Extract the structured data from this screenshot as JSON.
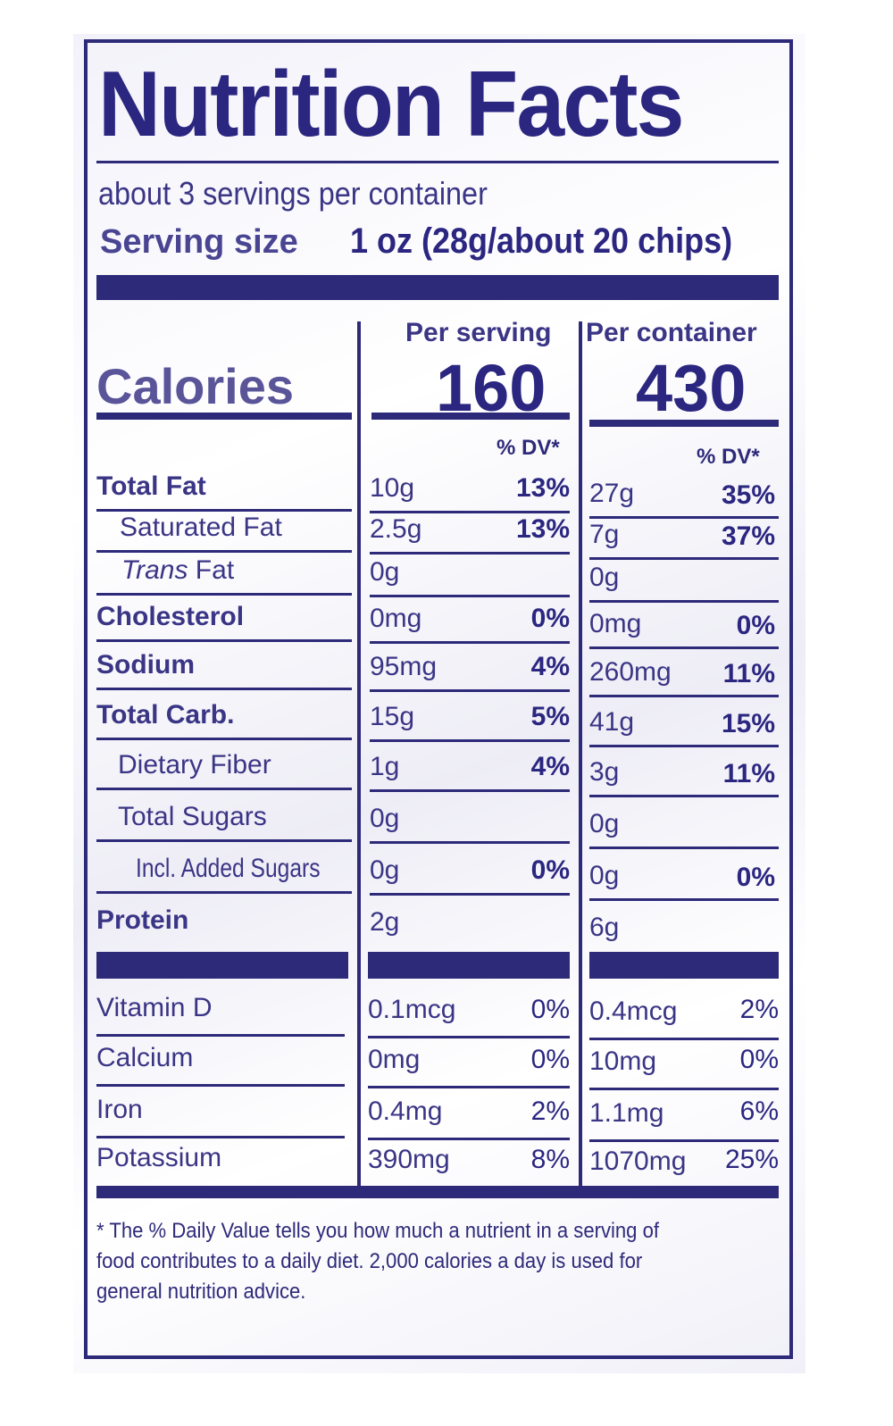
{
  "title": "Nutrition Facts",
  "servings_per_container": "about 3 servings per container",
  "serving_size_label": "Serving size",
  "serving_size_value": "1 oz (28g/about 20 chips)",
  "columns": {
    "per_serving": "Per serving",
    "per_container": "Per container"
  },
  "calories": {
    "label": "Calories",
    "per_serving": "160",
    "per_container": "430"
  },
  "dv_header": "% DV*",
  "nutrients": [
    {
      "name": "Total Fat",
      "s_amt": "10g",
      "s_dv": "13%",
      "c_amt": "27g",
      "c_dv": "35%"
    },
    {
      "name": "Saturated Fat",
      "s_amt": "2.5g",
      "s_dv": "13%",
      "c_amt": "7g",
      "c_dv": "37%"
    },
    {
      "name_em": "Trans",
      "name_rest": " Fat",
      "s_amt": "0g",
      "c_amt": "0g"
    },
    {
      "name": "Cholesterol",
      "s_amt": "0mg",
      "s_dv": "0%",
      "c_amt": "0mg",
      "c_dv": "0%"
    },
    {
      "name": "Sodium",
      "s_amt": "95mg",
      "s_dv": "4%",
      "c_amt": "260mg",
      "c_dv": "11%"
    },
    {
      "name": "Total Carb.",
      "s_amt": "15g",
      "s_dv": "5%",
      "c_amt": "41g",
      "c_dv": "15%"
    },
    {
      "name": "Dietary Fiber",
      "s_amt": "1g",
      "s_dv": "4%",
      "c_amt": "3g",
      "c_dv": "11%"
    },
    {
      "name": "Total Sugars",
      "s_amt": "0g",
      "c_amt": "0g"
    },
    {
      "name": "Incl. Added Sugars",
      "s_amt": "0g",
      "s_dv": "0%",
      "c_amt": "0g",
      "c_dv": "0%"
    },
    {
      "name": "Protein",
      "s_amt": "2g",
      "c_amt": "6g"
    }
  ],
  "vitamins": [
    {
      "name": "Vitamin D",
      "s_amt": "0.1mcg",
      "s_dv": "0%",
      "c_amt": "0.4mcg",
      "c_dv": "2%"
    },
    {
      "name": "Calcium",
      "s_amt": "0mg",
      "s_dv": "0%",
      "c_amt": "10mg",
      "c_dv": "0%"
    },
    {
      "name": "Iron",
      "s_amt": "0.4mg",
      "s_dv": "2%",
      "c_amt": "1.1mg",
      "c_dv": "6%"
    },
    {
      "name": "Potassium",
      "s_amt": "390mg",
      "s_dv": "8%",
      "c_amt": "1070mg",
      "c_dv": "25%"
    }
  ],
  "footnote": "* The % Daily Value tells you how much a nutrient in a serving of food contributes to a daily diet. 2,000 calories a day is used for general nutrition advice.",
  "colors": {
    "ink": "#2e2a7a",
    "background": "#ffffff"
  }
}
